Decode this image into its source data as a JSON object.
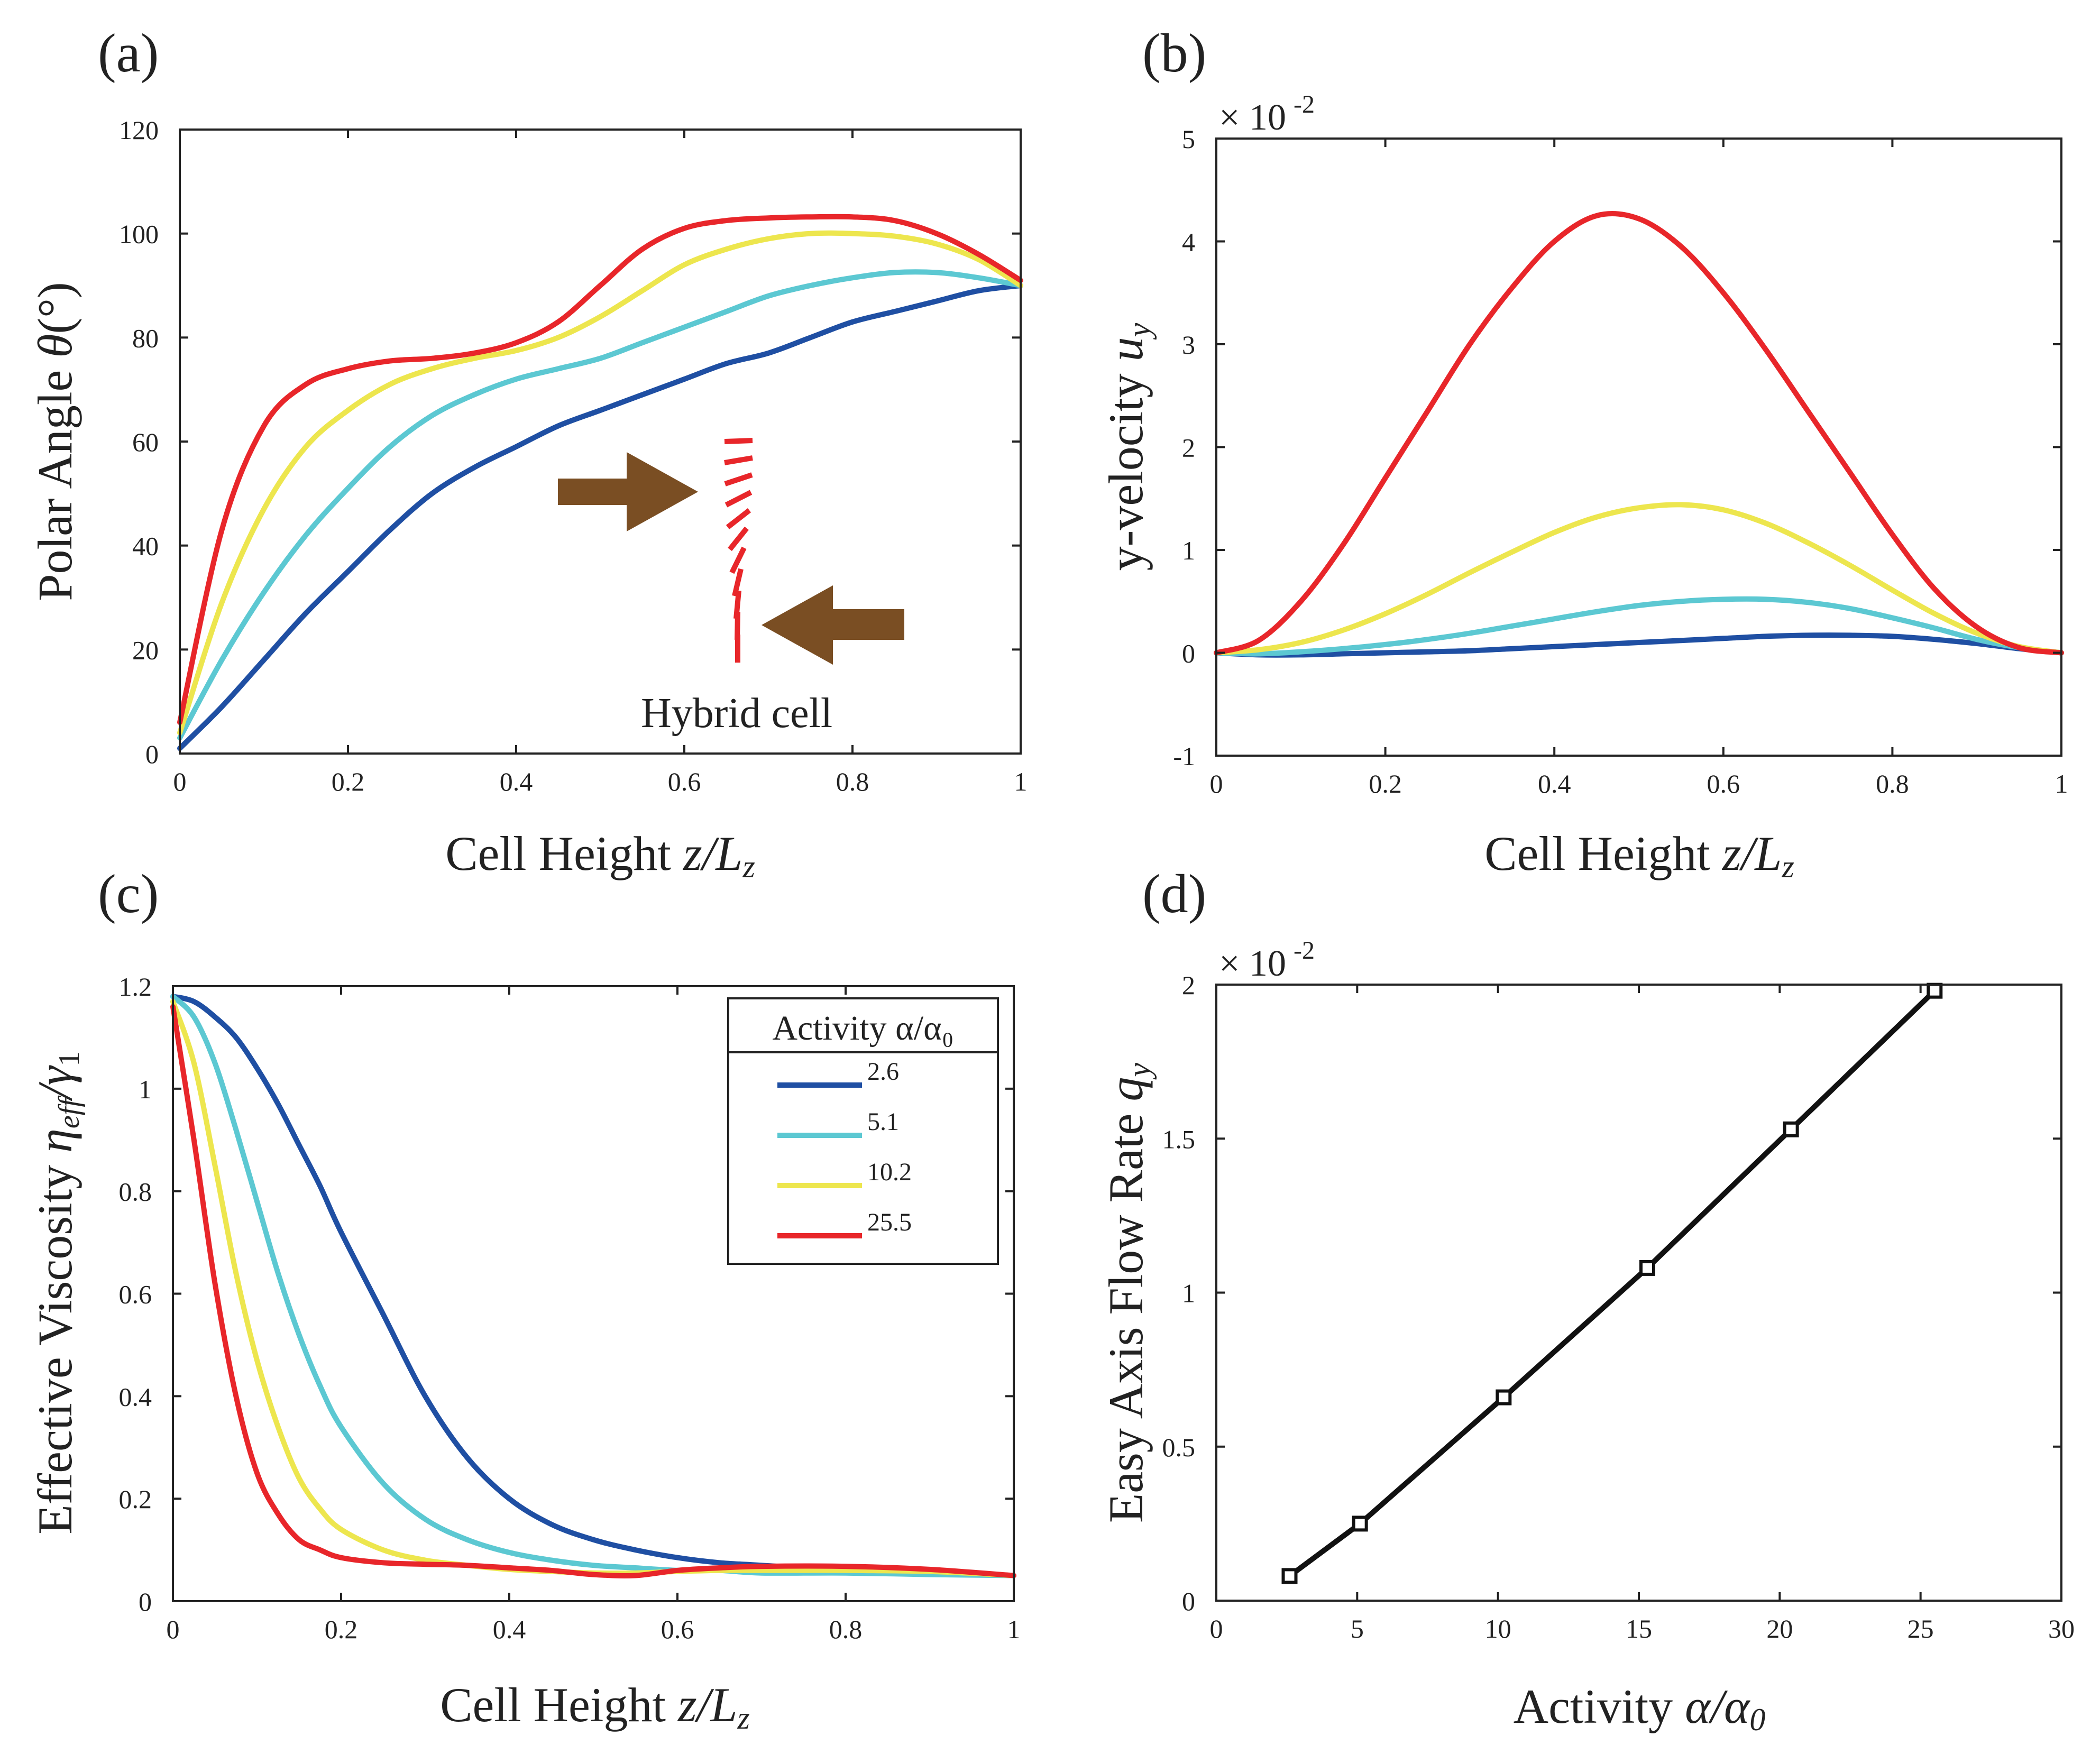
{
  "colors": {
    "blue": "#1f4fa3",
    "cyan": "#5cc8d2",
    "yellow": "#ede64e",
    "red": "#e8262a",
    "brown": "#7a4e23",
    "black": "#111111"
  },
  "legend": {
    "title": "Activity α/α₀",
    "items": [
      {
        "label": "2.6",
        "color": "#1f4fa3"
      },
      {
        "label": "5.1",
        "color": "#5cc8d2"
      },
      {
        "label": "10.2",
        "color": "#ede64e"
      },
      {
        "label": "25.5",
        "color": "#e8262a"
      }
    ]
  },
  "inset": {
    "label": "Hybrid cell",
    "icon": "hybrid-cell-director-icon"
  },
  "chart_data": [
    {
      "panel": "(a)",
      "type": "line",
      "xlabel_text": "Cell Height",
      "xlabel_math": "z/L",
      "xlabel_sub": "z",
      "ylabel_text": "Polar Angle",
      "ylabel_math": "θ",
      "ylabel_suffix": "(°)",
      "xlim": [
        0,
        1
      ],
      "ylim": [
        0,
        120
      ],
      "xticks": [
        0,
        0.2,
        0.4,
        0.6,
        0.8,
        1
      ],
      "xtick_labels": [
        "0",
        "0.2",
        "0.4",
        "0.6",
        "0.8",
        "1"
      ],
      "yticks": [
        0,
        20,
        40,
        60,
        80,
        100,
        120
      ],
      "ytick_labels": [
        "0",
        "20",
        "40",
        "60",
        "80",
        "100",
        "120"
      ],
      "exponent_label": "",
      "x": [
        0,
        0.05,
        0.1,
        0.15,
        0.2,
        0.25,
        0.3,
        0.35,
        0.4,
        0.45,
        0.5,
        0.55,
        0.6,
        0.65,
        0.7,
        0.75,
        0.8,
        0.85,
        0.9,
        0.95,
        1.0
      ],
      "series": [
        {
          "name": "2.6",
          "color": "#1f4fa3",
          "values": [
            1,
            9,
            18,
            27,
            35,
            43,
            50,
            55,
            59,
            63,
            66,
            69,
            72,
            75,
            77,
            80,
            83,
            85,
            87,
            89,
            90
          ]
        },
        {
          "name": "5.1",
          "color": "#5cc8d2",
          "values": [
            3,
            18,
            31,
            42,
            51,
            59,
            65,
            69,
            72,
            74,
            76,
            79,
            82,
            85,
            88,
            90,
            91.5,
            92.5,
            92.5,
            91.5,
            90
          ]
        },
        {
          "name": "10.2",
          "color": "#ede64e",
          "values": [
            4,
            29,
            47,
            59,
            66,
            71,
            74,
            76,
            77.5,
            80,
            84,
            89,
            94,
            97,
            99,
            100,
            100,
            99.5,
            98,
            95,
            90
          ]
        },
        {
          "name": "25.5",
          "color": "#e8262a",
          "values": [
            6,
            43,
            63,
            71,
            74,
            75.5,
            76,
            77,
            79,
            83,
            90,
            97,
            101,
            102.5,
            103,
            103.2,
            103.2,
            102.5,
            100,
            96,
            91
          ]
        }
      ]
    },
    {
      "panel": "(b)",
      "type": "line",
      "xlabel_text": "Cell Height",
      "xlabel_math": "z/L",
      "xlabel_sub": "z",
      "ylabel_text": "y-velocity",
      "ylabel_math": "u",
      "ylabel_sub": "y",
      "xlim": [
        0,
        1
      ],
      "ylim": [
        -1,
        5
      ],
      "xticks": [
        0,
        0.2,
        0.4,
        0.6,
        0.8,
        1
      ],
      "xtick_labels": [
        "0",
        "0.2",
        "0.4",
        "0.6",
        "0.8",
        "1"
      ],
      "yticks": [
        -1,
        0,
        1,
        2,
        3,
        4,
        5
      ],
      "ytick_labels": [
        "-1",
        "0",
        "1",
        "2",
        "3",
        "4",
        "5"
      ],
      "exponent_label": "× 10",
      "exponent_power": "-2",
      "x": [
        0,
        0.05,
        0.1,
        0.15,
        0.2,
        0.25,
        0.3,
        0.35,
        0.4,
        0.45,
        0.5,
        0.55,
        0.6,
        0.65,
        0.7,
        0.75,
        0.8,
        0.85,
        0.9,
        0.95,
        1.0
      ],
      "series": [
        {
          "name": "2.6",
          "color": "#1f4fa3",
          "values": [
            0,
            -0.02,
            -0.02,
            -0.01,
            0,
            0.01,
            0.02,
            0.04,
            0.06,
            0.08,
            0.1,
            0.12,
            0.14,
            0.16,
            0.17,
            0.17,
            0.16,
            0.13,
            0.09,
            0.04,
            0
          ]
        },
        {
          "name": "5.1",
          "color": "#5cc8d2",
          "values": [
            0,
            -0.01,
            0.01,
            0.04,
            0.08,
            0.13,
            0.19,
            0.26,
            0.33,
            0.4,
            0.46,
            0.5,
            0.52,
            0.52,
            0.49,
            0.43,
            0.34,
            0.24,
            0.13,
            0.05,
            0
          ]
        },
        {
          "name": "10.2",
          "color": "#ede64e",
          "values": [
            0,
            0.03,
            0.1,
            0.22,
            0.38,
            0.57,
            0.78,
            0.98,
            1.17,
            1.32,
            1.41,
            1.44,
            1.39,
            1.26,
            1.07,
            0.85,
            0.61,
            0.38,
            0.19,
            0.06,
            0
          ]
        },
        {
          "name": "25.5",
          "color": "#e8262a",
          "values": [
            0,
            0.12,
            0.5,
            1.05,
            1.7,
            2.35,
            3.0,
            3.55,
            4.0,
            4.25,
            4.22,
            3.95,
            3.5,
            2.95,
            2.35,
            1.75,
            1.15,
            0.62,
            0.25,
            0.05,
            0
          ]
        }
      ]
    },
    {
      "panel": "(c)",
      "type": "line",
      "xlabel_text": "Cell Height",
      "xlabel_math": "z/L",
      "xlabel_sub": "z",
      "ylabel_text": "Effective Viscosity",
      "ylabel_math": "η",
      "ylabel_sub": "eff",
      "ylabel_over": "/γ",
      "ylabel_over_sub": "1",
      "xlim": [
        0,
        1
      ],
      "ylim": [
        0,
        1.2
      ],
      "xticks": [
        0,
        0.2,
        0.4,
        0.6,
        0.8,
        1
      ],
      "xtick_labels": [
        "0",
        "0.2",
        "0.4",
        "0.6",
        "0.8",
        "1"
      ],
      "yticks": [
        0,
        0.2,
        0.4,
        0.6,
        0.8,
        1,
        1.2
      ],
      "ytick_labels": [
        "0",
        "0.2",
        "0.4",
        "0.6",
        "0.8",
        "1",
        "1.2"
      ],
      "exponent_label": "",
      "x": [
        0,
        0.025,
        0.05,
        0.075,
        0.1,
        0.125,
        0.15,
        0.175,
        0.2,
        0.25,
        0.3,
        0.35,
        0.4,
        0.45,
        0.5,
        0.55,
        0.6,
        0.65,
        0.7,
        0.8,
        0.9,
        1.0
      ],
      "series": [
        {
          "name": "2.6",
          "color": "#1f4fa3",
          "values": [
            1.18,
            1.17,
            1.14,
            1.1,
            1.04,
            0.97,
            0.89,
            0.81,
            0.72,
            0.56,
            0.4,
            0.28,
            0.2,
            0.15,
            0.12,
            0.1,
            0.085,
            0.075,
            0.07,
            0.06,
            0.055,
            0.05
          ]
        },
        {
          "name": "5.1",
          "color": "#5cc8d2",
          "values": [
            1.18,
            1.14,
            1.05,
            0.92,
            0.78,
            0.64,
            0.52,
            0.42,
            0.34,
            0.23,
            0.16,
            0.12,
            0.095,
            0.08,
            0.07,
            0.065,
            0.06,
            0.06,
            0.055,
            0.055,
            0.052,
            0.05
          ]
        },
        {
          "name": "10.2",
          "color": "#ede64e",
          "values": [
            1.17,
            1.05,
            0.85,
            0.64,
            0.47,
            0.34,
            0.24,
            0.18,
            0.14,
            0.1,
            0.08,
            0.07,
            0.062,
            0.058,
            0.055,
            0.055,
            0.058,
            0.06,
            0.06,
            0.06,
            0.058,
            0.05
          ]
        },
        {
          "name": "25.5",
          "color": "#e8262a",
          "values": [
            1.16,
            0.9,
            0.62,
            0.4,
            0.25,
            0.17,
            0.12,
            0.1,
            0.085,
            0.075,
            0.072,
            0.07,
            0.065,
            0.06,
            0.052,
            0.05,
            0.06,
            0.065,
            0.068,
            0.068,
            0.062,
            0.05
          ]
        }
      ]
    },
    {
      "panel": "(d)",
      "type": "line",
      "xlabel_text": "Activity",
      "xlabel_math": "α/α",
      "xlabel_sub": "0",
      "ylabel_text": "Easy Axis Flow Rate",
      "ylabel_math": "q",
      "ylabel_sub": "y",
      "xlim": [
        0,
        30
      ],
      "ylim": [
        0,
        2
      ],
      "xticks": [
        0,
        5,
        10,
        15,
        20,
        25,
        30
      ],
      "xtick_labels": [
        "0",
        "5",
        "10",
        "15",
        "20",
        "25",
        "30"
      ],
      "yticks": [
        0,
        0.5,
        1,
        1.5,
        2
      ],
      "ytick_labels": [
        "0",
        "0.5",
        "1",
        "1.5",
        "2"
      ],
      "exponent_label": "× 10",
      "exponent_power": "-2",
      "x": [
        2.6,
        5.1,
        10.2,
        15.3,
        20.4,
        25.5
      ],
      "series": [
        {
          "name": "flow rate",
          "color": "#111111",
          "marker": "square",
          "values": [
            0.08,
            0.25,
            0.66,
            1.08,
            1.53,
            1.98
          ]
        }
      ]
    }
  ]
}
